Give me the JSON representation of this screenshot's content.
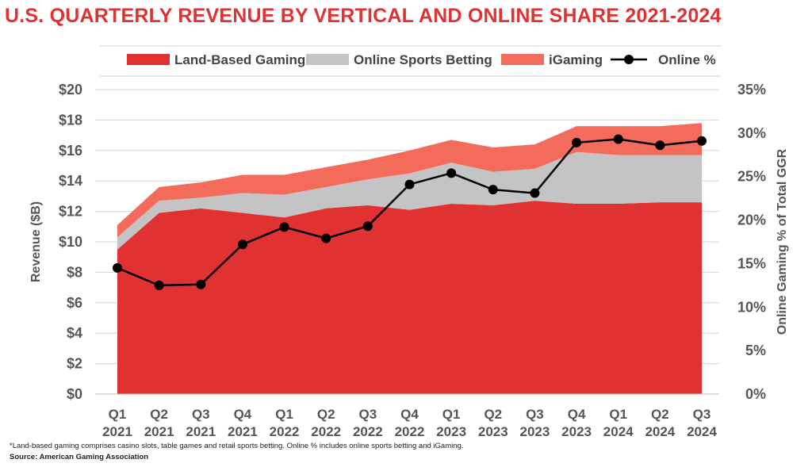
{
  "title": "U.S. QUARTERLY REVENUE BY VERTICAL AND ONLINE SHARE 2021-2024",
  "footnote": "*Land-based gaming comprises casino slots, table games and retail sports betting. Online % includes online sports betting and iGaming.",
  "source": "Source: American Gaming Association",
  "chart_data": {
    "type": "area",
    "stacked": true,
    "categories": [
      [
        "Q1",
        "2021"
      ],
      [
        "Q2",
        "2021"
      ],
      [
        "Q3",
        "2021"
      ],
      [
        "Q4",
        "2021"
      ],
      [
        "Q1",
        "2022"
      ],
      [
        "Q2",
        "2022"
      ],
      [
        "Q3",
        "2022"
      ],
      [
        "Q4",
        "2022"
      ],
      [
        "Q1",
        "2023"
      ],
      [
        "Q2",
        "2023"
      ],
      [
        "Q3",
        "2023"
      ],
      [
        "Q4",
        "2023"
      ],
      [
        "Q1",
        "2024"
      ],
      [
        "Q2",
        "2024"
      ],
      [
        "Q3",
        "2024"
      ]
    ],
    "series": [
      {
        "name": "Land-Based Gaming",
        "type": "area",
        "axis": "left",
        "color": "#e03232",
        "values": [
          9.5,
          11.9,
          12.2,
          11.9,
          11.6,
          12.2,
          12.4,
          12.1,
          12.5,
          12.4,
          12.7,
          12.5,
          12.5,
          12.6,
          12.6
        ]
      },
      {
        "name": "Online Sports Betting",
        "type": "area",
        "axis": "left",
        "color": "#c4c4c4",
        "values": [
          0.8,
          0.8,
          0.7,
          1.3,
          1.5,
          1.4,
          1.7,
          2.4,
          2.7,
          2.2,
          2.1,
          3.4,
          3.2,
          3.1,
          3.1
        ]
      },
      {
        "name": "iGaming",
        "type": "area",
        "axis": "left",
        "color": "#f26b5b",
        "values": [
          0.8,
          0.9,
          1.0,
          1.2,
          1.3,
          1.3,
          1.3,
          1.5,
          1.5,
          1.6,
          1.6,
          1.7,
          1.9,
          1.9,
          2.1
        ]
      },
      {
        "name": "Online %",
        "type": "line",
        "axis": "right",
        "color": "#000000",
        "values": [
          14.5,
          12.5,
          12.6,
          17.2,
          19.2,
          17.9,
          19.3,
          24.1,
          25.4,
          23.5,
          23.1,
          28.9,
          29.3,
          28.6,
          29.1
        ]
      }
    ],
    "y_left": {
      "label": "Revenue ($B)",
      "min": 0,
      "max": 20,
      "step": 2,
      "prefix": "$",
      "suffix": ""
    },
    "y_right": {
      "label": "Online Gaming % of Total GGR",
      "min": 0,
      "max": 35,
      "step": 5,
      "prefix": "",
      "suffix": "%"
    },
    "legend_position": "top",
    "grid": true
  }
}
